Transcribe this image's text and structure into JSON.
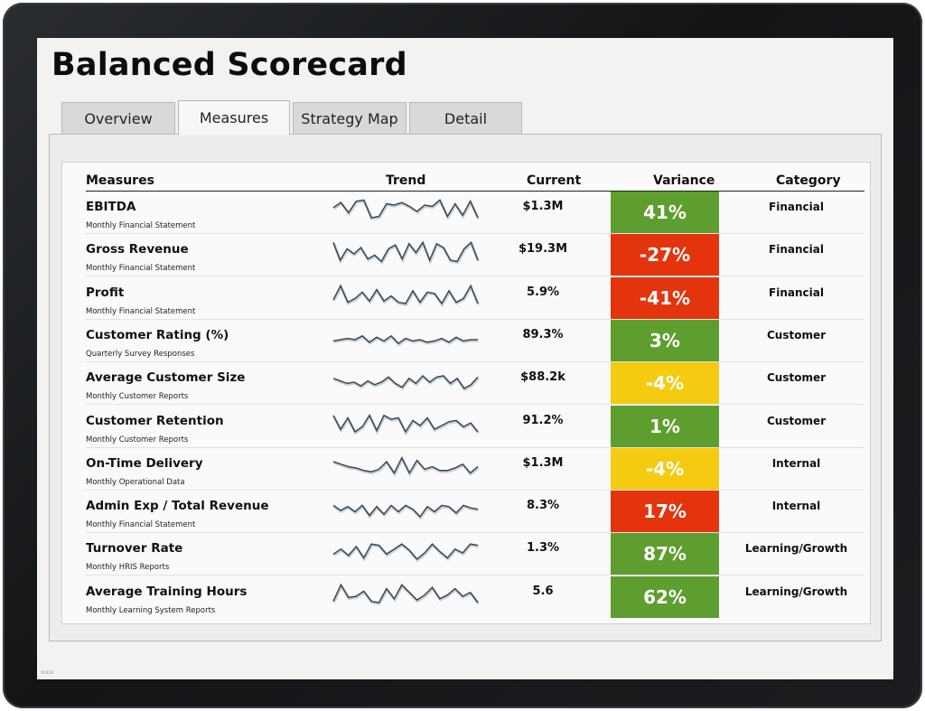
{
  "page": {
    "title": "Balanced Scorecard"
  },
  "tabs": [
    {
      "label": "Overview",
      "active": false
    },
    {
      "label": "Measures",
      "active": true
    },
    {
      "label": "Strategy Map",
      "active": false
    },
    {
      "label": "Detail",
      "active": false
    }
  ],
  "table": {
    "headers": {
      "measures": "Measures",
      "trend": "Trend",
      "current": "Current",
      "variance": "Variance",
      "category": "Category"
    },
    "status_colors": {
      "good": "#5e9e2e",
      "bad": "#e3340d",
      "warning": "#f5cb12"
    },
    "rows": [
      {
        "name": "EBITDA",
        "source": "Monthly Financial Statement",
        "current": "$1.3M",
        "variance": "41%",
        "status": "good",
        "category": "Financial",
        "trend": [
          0.35,
          0.15,
          0.55,
          0.1,
          0.05,
          0.75,
          0.7,
          0.2,
          0.25,
          0.15,
          0.3,
          0.5,
          0.25,
          0.3,
          0.05,
          0.7,
          0.2,
          0.65,
          0.1,
          0.75
        ]
      },
      {
        "name": "Gross Revenue",
        "source": "Monthly Financial Statement",
        "current": "$19.3M",
        "variance": "-27%",
        "status": "bad",
        "category": "Financial",
        "trend": [
          0.05,
          0.75,
          0.3,
          0.5,
          0.25,
          0.7,
          0.55,
          0.8,
          0.3,
          0.15,
          0.7,
          0.1,
          0.45,
          0.05,
          0.75,
          0.1,
          0.25,
          0.75,
          0.8,
          0.3,
          0.05,
          0.75
        ]
      },
      {
        "name": "Profit",
        "source": "Monthly Financial Statement",
        "current": "5.9%",
        "variance": "-41%",
        "status": "bad",
        "category": "Financial",
        "trend": [
          0.6,
          0.05,
          0.7,
          0.55,
          0.3,
          0.65,
          0.2,
          0.65,
          0.45,
          0.7,
          0.75,
          0.25,
          0.7,
          0.3,
          0.35,
          0.75,
          0.25,
          0.7,
          0.55,
          0.05,
          0.75
        ]
      },
      {
        "name": "Customer Rating (%)",
        "source": "Quarterly Survey Responses",
        "current": "89.3%",
        "variance": "3%",
        "status": "good",
        "category": "Customer",
        "trend": [
          0.55,
          0.5,
          0.45,
          0.5,
          0.35,
          0.6,
          0.4,
          0.55,
          0.35,
          0.65,
          0.45,
          0.55,
          0.5,
          0.6,
          0.55,
          0.45,
          0.6,
          0.4,
          0.55,
          0.5,
          0.5
        ]
      },
      {
        "name": "Average Customer Size",
        "source": "Monthly Customer Reports",
        "current": "$88.2k",
        "variance": "-4%",
        "status": "warning",
        "category": "Customer",
        "trend": [
          0.35,
          0.45,
          0.55,
          0.5,
          0.65,
          0.45,
          0.6,
          0.5,
          0.3,
          0.55,
          0.7,
          0.35,
          0.55,
          0.25,
          0.5,
          0.3,
          0.25,
          0.55,
          0.35,
          0.75,
          0.6,
          0.3
        ]
      },
      {
        "name": "Customer Retention",
        "source": "Monthly Customer Reports",
        "current": "91.2%",
        "variance": "1%",
        "status": "good",
        "category": "Customer",
        "trend": [
          0.1,
          0.65,
          0.2,
          0.75,
          0.55,
          0.1,
          0.7,
          0.1,
          0.25,
          0.2,
          0.75,
          0.3,
          0.5,
          0.2,
          0.65,
          0.5,
          0.35,
          0.3,
          0.55,
          0.4,
          0.75
        ]
      },
      {
        "name": "On-Time Delivery",
        "source": "Monthly Operational Data",
        "current": "$1.3M",
        "variance": "-4%",
        "status": "warning",
        "category": "Internal",
        "trend": [
          0.25,
          0.35,
          0.45,
          0.5,
          0.6,
          0.65,
          0.55,
          0.25,
          0.7,
          0.1,
          0.7,
          0.2,
          0.55,
          0.45,
          0.6,
          0.6,
          0.5,
          0.35,
          0.7,
          0.45
        ]
      },
      {
        "name": "Admin Exp / Total Revenue",
        "source": "Monthly Financial Statement",
        "current": "8.3%",
        "variance": "17%",
        "status": "bad",
        "category": "Internal",
        "trend": [
          0.3,
          0.5,
          0.35,
          0.55,
          0.3,
          0.7,
          0.35,
          0.65,
          0.3,
          0.55,
          0.3,
          0.45,
          0.75,
          0.35,
          0.55,
          0.3,
          0.35,
          0.6,
          0.3,
          0.4,
          0.45
        ]
      },
      {
        "name": "Turnover Rate",
        "source": "Monthly HRIS Reports",
        "current": "1.3%",
        "variance": "87%",
        "status": "good",
        "category": "Learning/Growth",
        "trend": [
          0.55,
          0.35,
          0.6,
          0.25,
          0.7,
          0.15,
          0.2,
          0.55,
          0.35,
          0.15,
          0.4,
          0.75,
          0.5,
          0.15,
          0.45,
          0.7,
          0.35,
          0.5,
          0.15,
          0.2
        ]
      },
      {
        "name": "Average Training Hours",
        "source": "Monthly Learning System Reports",
        "current": "5.6",
        "variance": "62%",
        "status": "good",
        "category": "Learning/Growth",
        "trend": [
          0.7,
          0.05,
          0.55,
          0.5,
          0.3,
          0.7,
          0.75,
          0.2,
          0.6,
          0.05,
          0.35,
          0.65,
          0.45,
          0.15,
          0.6,
          0.45,
          0.2,
          0.5,
          0.35,
          0.75
        ]
      }
    ]
  }
}
